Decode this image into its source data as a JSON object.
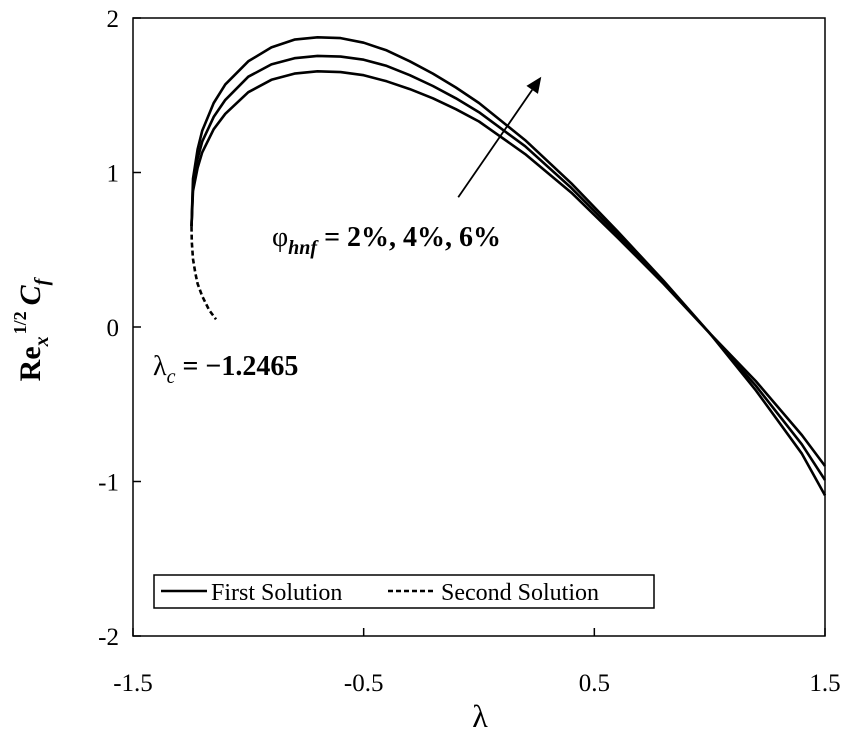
{
  "chart_data": {
    "type": "line",
    "title": "",
    "xlabel": "λ",
    "ylabel": {
      "main": "Re",
      "sub": "x",
      "sup": "1/2",
      "var": "C",
      "var_sub": "f"
    },
    "xlim": [
      -1.5,
      1.5
    ],
    "ylim": [
      -2,
      2
    ],
    "xticks": [
      -1.5,
      -0.5,
      0.5,
      1.5
    ],
    "xtick_labels": [
      "-1.5",
      "-0.5",
      "0.5",
      "1.5"
    ],
    "yticks": [
      -2,
      -1,
      0,
      1,
      2
    ],
    "ytick_labels": [
      "-2",
      "-1",
      "0",
      "1",
      "2"
    ],
    "grid": false,
    "legend": {
      "position": "bottom-left",
      "entries": [
        {
          "label": "First Solution",
          "style": "solid"
        },
        {
          "label": "Second Solution",
          "style": "dashed"
        }
      ]
    },
    "annotations": {
      "critical": {
        "symbol": "λ",
        "sub": "c",
        "text": " = −1.2465"
      },
      "phi": {
        "symbol": "φ",
        "sub": "hnf",
        "text": " = 2%, 4%, 6%"
      },
      "arrow_from": [
        -0.09,
        0.84
      ],
      "arrow_to": [
        0.27,
        1.62
      ]
    },
    "critical_point": -1.2465,
    "series": [
      {
        "style": "solid",
        "x": [
          -1.2465,
          -1.24,
          -1.22,
          -1.2,
          -1.15,
          -1.1,
          -1.0,
          -0.9,
          -0.8,
          -0.7,
          -0.6,
          -0.5,
          -0.4,
          -0.3,
          -0.2,
          -0.1,
          0.0,
          0.2,
          0.4,
          0.6,
          0.8,
          1.0,
          1.2,
          1.4,
          1.5
        ],
        "y": [
          0.65,
          0.88,
          1.03,
          1.13,
          1.28,
          1.38,
          1.52,
          1.6,
          1.64,
          1.655,
          1.65,
          1.63,
          1.59,
          1.54,
          1.48,
          1.41,
          1.33,
          1.12,
          0.87,
          0.58,
          0.28,
          -0.04,
          -0.35,
          -0.7,
          -0.9
        ]
      },
      {
        "style": "solid",
        "x": [
          -1.2465,
          -1.24,
          -1.22,
          -1.2,
          -1.15,
          -1.1,
          -1.0,
          -0.9,
          -0.8,
          -0.7,
          -0.6,
          -0.5,
          -0.4,
          -0.3,
          -0.2,
          -0.1,
          0.0,
          0.2,
          0.4,
          0.6,
          0.8,
          1.0,
          1.2,
          1.4,
          1.5
        ],
        "y": [
          0.65,
          0.92,
          1.09,
          1.2,
          1.36,
          1.47,
          1.62,
          1.7,
          1.74,
          1.755,
          1.75,
          1.73,
          1.69,
          1.63,
          1.56,
          1.48,
          1.39,
          1.17,
          0.9,
          0.6,
          0.29,
          -0.04,
          -0.38,
          -0.76,
          -0.99
        ]
      },
      {
        "style": "solid",
        "x": [
          -1.2465,
          -1.24,
          -1.22,
          -1.2,
          -1.15,
          -1.1,
          -1.0,
          -0.9,
          -0.8,
          -0.7,
          -0.6,
          -0.5,
          -0.4,
          -0.3,
          -0.2,
          -0.1,
          0.0,
          0.2,
          0.4,
          0.6,
          0.8,
          1.0,
          1.2,
          1.4,
          1.5
        ],
        "y": [
          0.65,
          0.96,
          1.15,
          1.27,
          1.45,
          1.57,
          1.72,
          1.81,
          1.86,
          1.875,
          1.87,
          1.84,
          1.79,
          1.72,
          1.64,
          1.55,
          1.45,
          1.21,
          0.93,
          0.62,
          0.3,
          -0.04,
          -0.41,
          -0.82,
          -1.09
        ]
      },
      {
        "style": "dashed",
        "x": [
          -1.2465,
          -1.245,
          -1.24,
          -1.23,
          -1.22,
          -1.2,
          -1.17,
          -1.14
        ],
        "y": [
          0.65,
          0.55,
          0.44,
          0.35,
          0.28,
          0.2,
          0.11,
          0.05
        ]
      }
    ]
  }
}
